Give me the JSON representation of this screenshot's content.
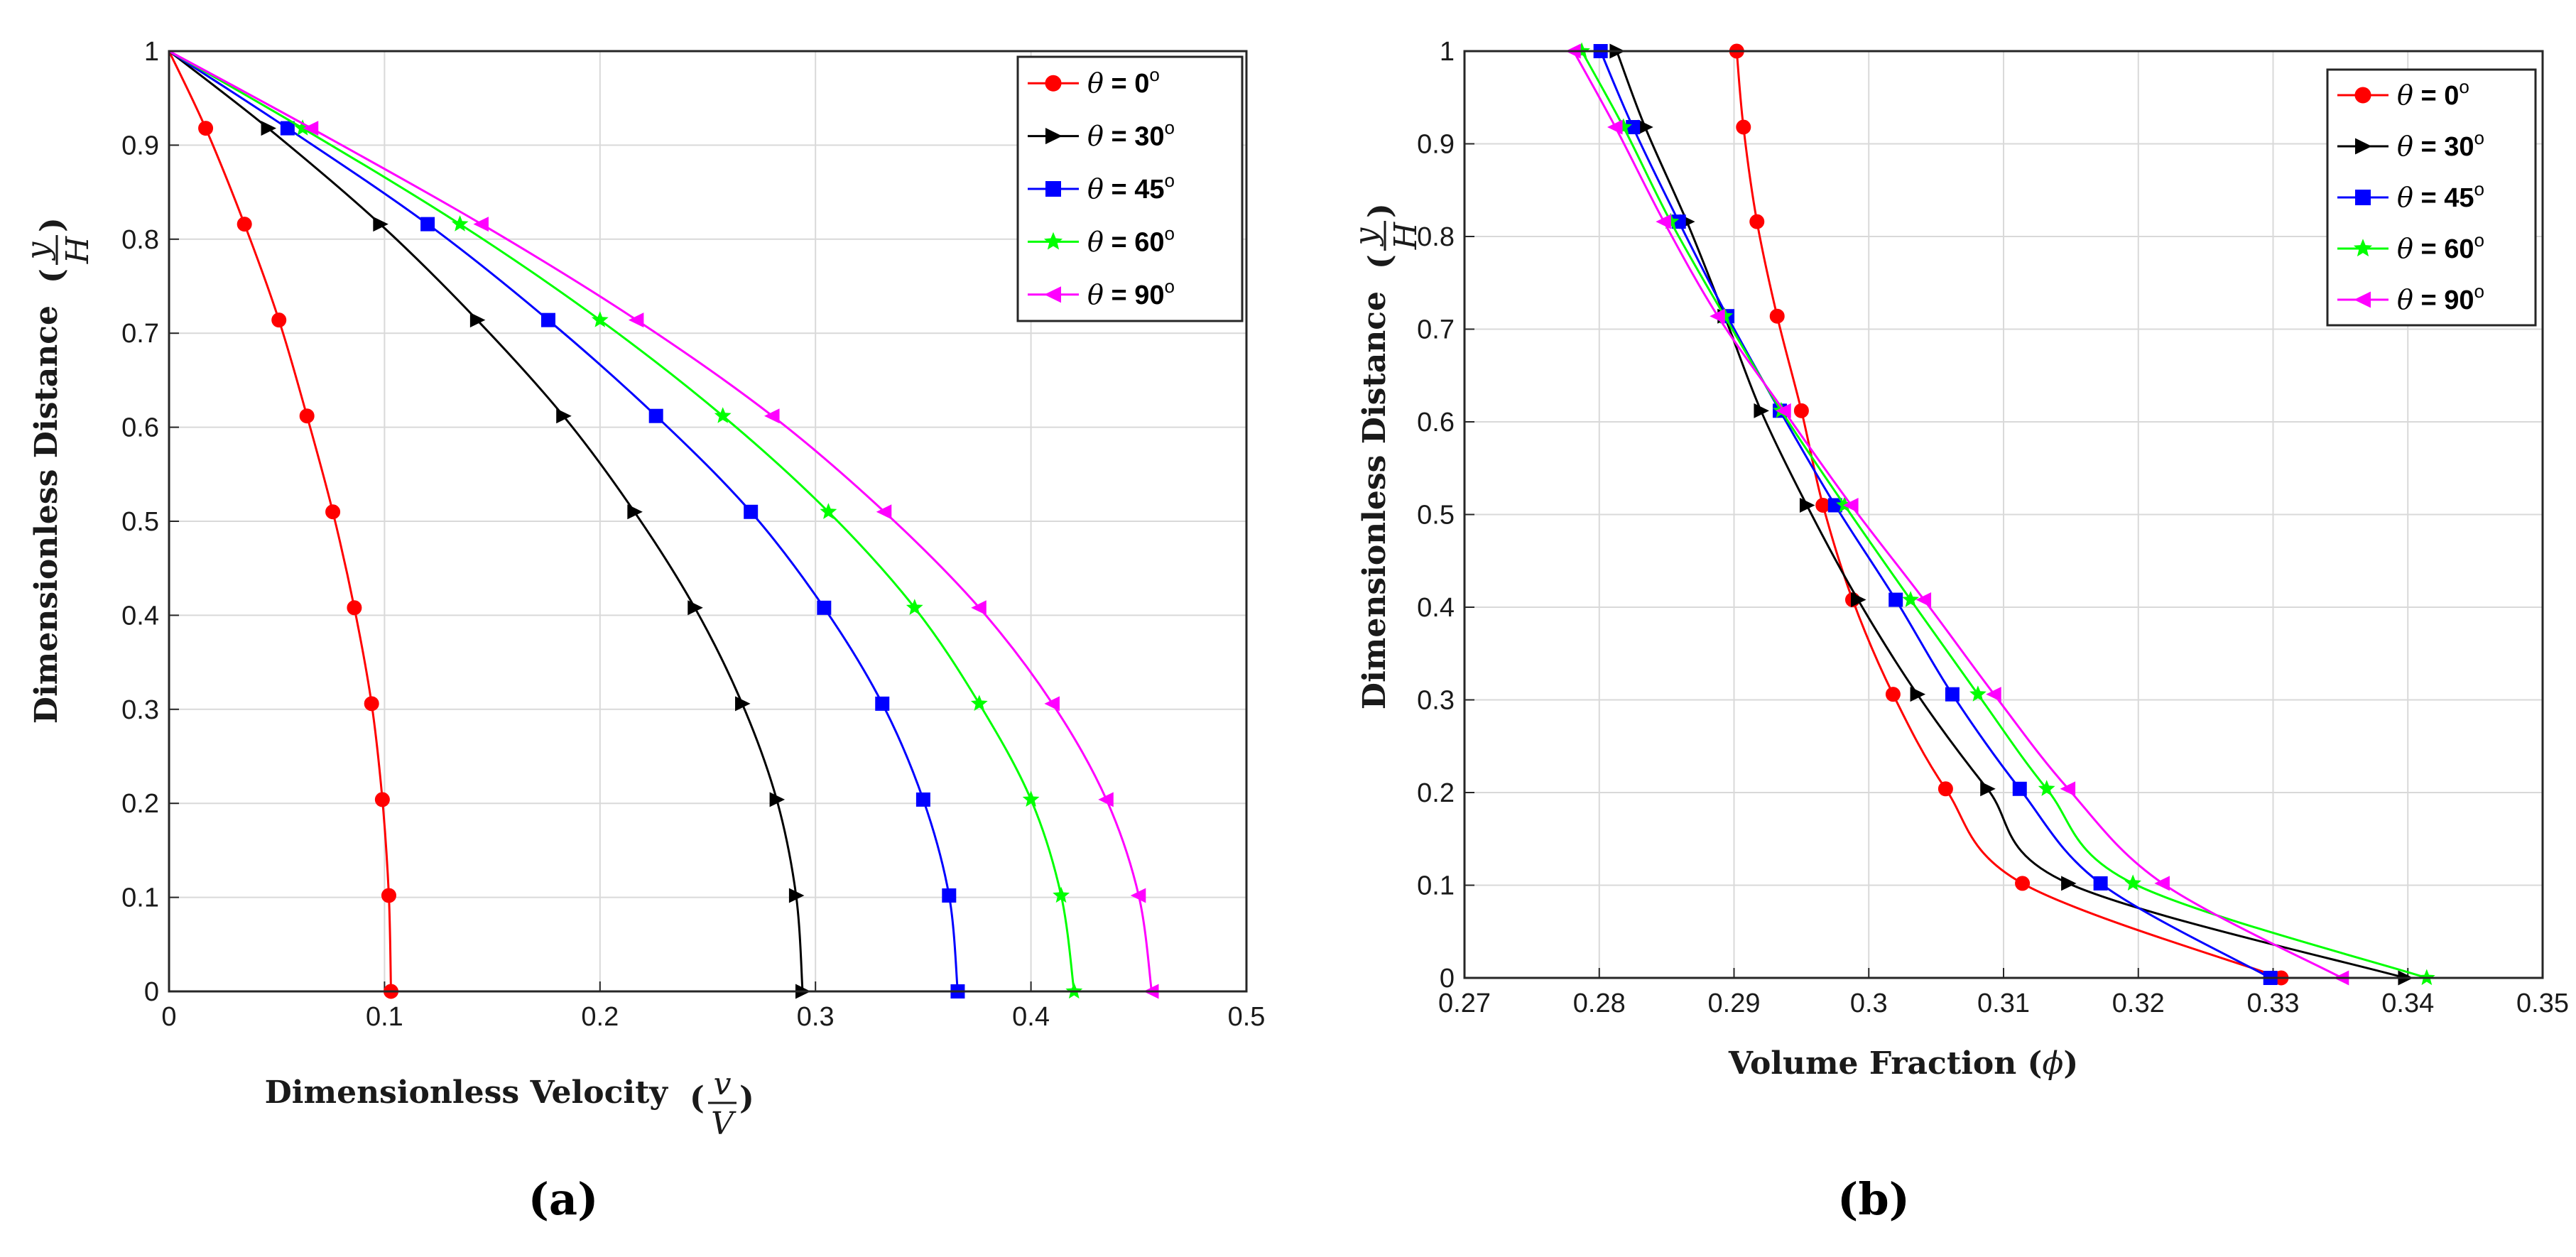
{
  "chart_data": [
    {
      "type": "line",
      "panel": "(a)",
      "xlabel": "Dimensionless Velocity",
      "xlabel_frac": {
        "num": "v",
        "den": "V"
      },
      "ylabel": "Dimensionless Distance",
      "ylabel_frac": {
        "num": "y",
        "den": "H"
      },
      "xlim": [
        0,
        0.5
      ],
      "ylim": [
        0,
        1
      ],
      "xticks": [
        "0",
        "0.1",
        "0.2",
        "0.3",
        "0.4",
        "0.5"
      ],
      "yticks": [
        "0",
        "0.1",
        "0.2",
        "0.3",
        "0.4",
        "0.5",
        "0.6",
        "0.7",
        "0.8",
        "0.9",
        "1"
      ],
      "grid": true,
      "legend_position": "top-right",
      "series": [
        {
          "name": "θ = 0°",
          "theta": "θ",
          "label": " = 0",
          "sup": "o",
          "color": "#ff0000",
          "marker": "circle",
          "x": [
            0,
            0.017,
            0.035,
            0.051,
            0.064,
            0.076,
            0.086,
            0.094,
            0.099,
            0.102,
            0.103
          ],
          "y": [
            1,
            0.918,
            0.816,
            0.714,
            0.612,
            0.51,
            0.408,
            0.306,
            0.204,
            0.102,
            0
          ]
        },
        {
          "name": "θ = 30°",
          "theta": "θ",
          "label": " = 30",
          "sup": "o",
          "color": "#000000",
          "marker": "triangle-right",
          "x": [
            0,
            0.046,
            0.098,
            0.143,
            0.183,
            0.216,
            0.244,
            0.266,
            0.282,
            0.291,
            0.294
          ],
          "y": [
            1,
            0.918,
            0.816,
            0.714,
            0.612,
            0.51,
            0.408,
            0.306,
            0.204,
            0.102,
            0
          ]
        },
        {
          "name": "θ = 45°",
          "theta": "θ",
          "label": " = 45",
          "sup": "o",
          "color": "#0000ff",
          "marker": "square",
          "x": [
            0,
            0.055,
            0.12,
            0.176,
            0.226,
            0.27,
            0.304,
            0.331,
            0.35,
            0.362,
            0.366
          ],
          "y": [
            1,
            0.918,
            0.816,
            0.714,
            0.612,
            0.51,
            0.408,
            0.306,
            0.204,
            0.102,
            0
          ]
        },
        {
          "name": "θ = 60°",
          "theta": "θ",
          "label": " = 60",
          "sup": "o",
          "color": "#00ff00",
          "marker": "star",
          "x": [
            0,
            0.062,
            0.135,
            0.2,
            0.257,
            0.306,
            0.346,
            0.376,
            0.4,
            0.414,
            0.42
          ],
          "y": [
            1,
            0.918,
            0.816,
            0.714,
            0.612,
            0.51,
            0.408,
            0.306,
            0.204,
            0.102,
            0
          ]
        },
        {
          "name": "θ = 90°",
          "theta": "θ",
          "label": " = 90",
          "sup": "o",
          "color": "#ff00ff",
          "marker": "triangle-left",
          "x": [
            0,
            0.066,
            0.145,
            0.217,
            0.28,
            0.332,
            0.376,
            0.41,
            0.435,
            0.45,
            0.456
          ],
          "y": [
            1,
            0.918,
            0.816,
            0.714,
            0.612,
            0.51,
            0.408,
            0.306,
            0.204,
            0.102,
            0
          ]
        }
      ]
    },
    {
      "type": "line",
      "panel": "(b)",
      "xlabel": "Volume Fraction",
      "xlabel_symbol": "ϕ",
      "ylabel": "Dimensionless Distance",
      "ylabel_frac": {
        "num": "y",
        "den": "H"
      },
      "xlim": [
        0.27,
        0.35
      ],
      "ylim": [
        0,
        1
      ],
      "xticks": [
        "0.27",
        "0.28",
        "0.29",
        "0.3",
        "0.31",
        "0.32",
        "0.33",
        "0.34",
        "0.35"
      ],
      "yticks": [
        "0",
        "0.1",
        "0.2",
        "0.3",
        "0.4",
        "0.5",
        "0.6",
        "0.7",
        "0.8",
        "0.9",
        "1"
      ],
      "grid": true,
      "legend_position": "top-right",
      "series": [
        {
          "name": "θ = 0°",
          "theta": "θ",
          "label": " = 0",
          "sup": "o",
          "color": "#ff0000",
          "marker": "circle",
          "x": [
            0.2902,
            0.2907,
            0.2917,
            0.2932,
            0.295,
            0.2966,
            0.2988,
            0.3018,
            0.3057,
            0.3114,
            0.3306
          ],
          "y": [
            1,
            0.918,
            0.816,
            0.714,
            0.612,
            0.51,
            0.408,
            0.306,
            0.204,
            0.102,
            0
          ]
        },
        {
          "name": "θ = 30°",
          "theta": "θ",
          "label": " = 30",
          "sup": "o",
          "color": "#000000",
          "marker": "triangle-right",
          "x": [
            0.2813,
            0.2834,
            0.2865,
            0.2893,
            0.292,
            0.2954,
            0.2992,
            0.3036,
            0.3088,
            0.3148,
            0.3398
          ],
          "y": [
            1,
            0.918,
            0.816,
            0.714,
            0.612,
            0.51,
            0.408,
            0.306,
            0.204,
            0.102,
            0
          ]
        },
        {
          "name": "θ = 45°",
          "theta": "θ",
          "label": " = 45",
          "sup": "o",
          "color": "#0000ff",
          "marker": "square",
          "x": [
            0.2801,
            0.2825,
            0.2859,
            0.2895,
            0.2934,
            0.2975,
            0.302,
            0.3062,
            0.3112,
            0.3172,
            0.3298
          ],
          "y": [
            1,
            0.918,
            0.816,
            0.714,
            0.612,
            0.51,
            0.408,
            0.306,
            0.204,
            0.102,
            0
          ]
        },
        {
          "name": "θ = 60°",
          "theta": "θ",
          "label": " = 60",
          "sup": "o",
          "color": "#00ff00",
          "marker": "star",
          "x": [
            0.2787,
            0.2818,
            0.2853,
            0.2893,
            0.2935,
            0.2982,
            0.3031,
            0.3081,
            0.3132,
            0.3196,
            0.3414
          ],
          "y": [
            1,
            0.918,
            0.816,
            0.714,
            0.612,
            0.51,
            0.408,
            0.306,
            0.204,
            0.102,
            0
          ]
        },
        {
          "name": "θ = 90°",
          "theta": "θ",
          "label": " = 90",
          "sup": "o",
          "color": "#ff00ff",
          "marker": "triangle-left",
          "x": [
            0.2781,
            0.2812,
            0.2848,
            0.2888,
            0.2937,
            0.2987,
            0.3041,
            0.3093,
            0.3148,
            0.3218,
            0.3351
          ],
          "y": [
            1,
            0.918,
            0.816,
            0.714,
            0.612,
            0.51,
            0.408,
            0.306,
            0.204,
            0.102,
            0
          ]
        }
      ]
    }
  ],
  "captions": [
    "(a)",
    "(b)"
  ]
}
